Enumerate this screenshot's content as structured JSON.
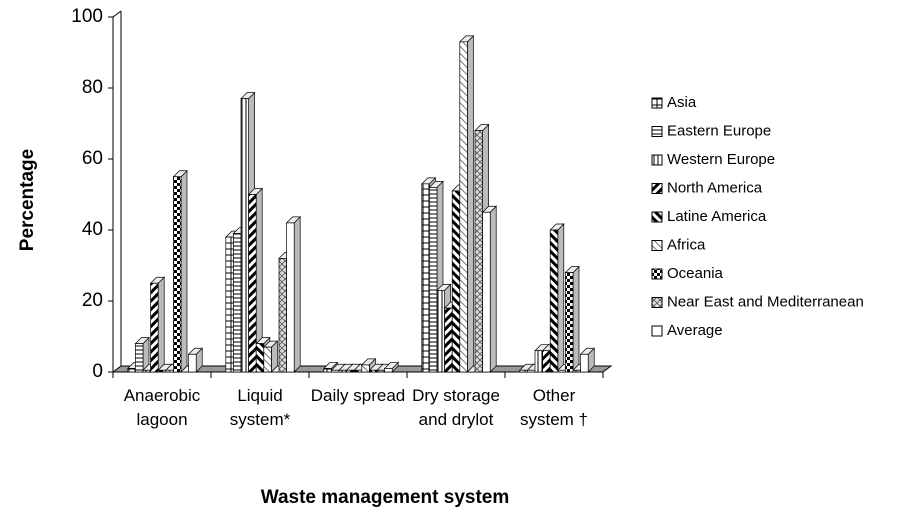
{
  "chart_data": {
    "type": "bar3d",
    "x_label": "Waste management system",
    "y_label": "Percentage",
    "categories": [
      "Anaerobic lagoon",
      "Liquid system*",
      "Daily spread",
      "Dry storage and drylot",
      "Other system †"
    ],
    "series": [
      {
        "name": "Asia",
        "values": [
          1,
          38,
          1,
          53,
          0.5
        ]
      },
      {
        "name": "Eastern Europe",
        "values": [
          8,
          39,
          0.5,
          52,
          0.5
        ]
      },
      {
        "name": "Western Europe",
        "values": [
          0.5,
          77,
          0.5,
          23,
          6
        ]
      },
      {
        "name": "North America",
        "values": [
          25,
          50,
          0.5,
          18,
          6
        ]
      },
      {
        "name": "Latine America",
        "values": [
          0.5,
          8,
          0.5,
          51,
          40
        ]
      },
      {
        "name": "Africa",
        "values": [
          0.5,
          7,
          2,
          93,
          0.5
        ]
      },
      {
        "name": "Oceania",
        "values": [
          55,
          0,
          0.5,
          0,
          28
        ]
      },
      {
        "name": "Near East and Mediterranean",
        "values": [
          0,
          32,
          0.5,
          68,
          0.5
        ]
      },
      {
        "name": "Average",
        "values": [
          5,
          42,
          1,
          45,
          5
        ]
      }
    ],
    "ylim": [
      0,
      100
    ],
    "yticks": [
      0,
      20,
      40,
      60,
      80,
      100
    ]
  }
}
